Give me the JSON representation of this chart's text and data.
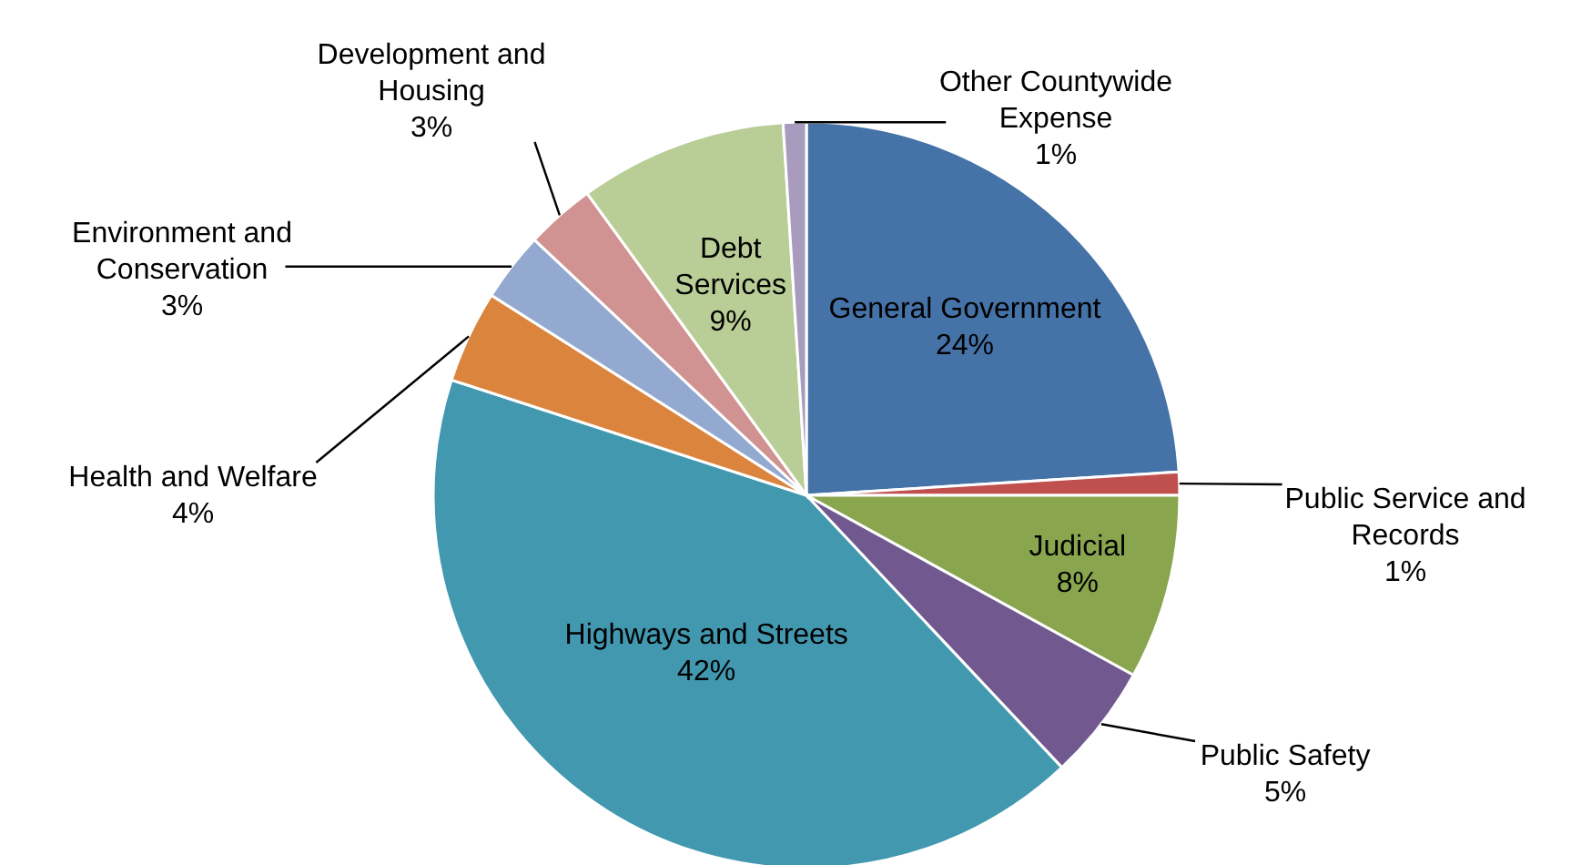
{
  "chart_data": {
    "type": "pie",
    "categories": [
      "General Government",
      "Public Service and Records",
      "Judicial",
      "Public Safety",
      "Highways and Streets",
      "Health and Welfare",
      "Environment and Conservation",
      "Development and Housing",
      "Debt Services",
      "Other Countywide Expense"
    ],
    "values": [
      24,
      1,
      8,
      5,
      42,
      4,
      3,
      3,
      9,
      1
    ],
    "value_labels": [
      "24%",
      "1%",
      "8%",
      "5%",
      "42%",
      "4%",
      "3%",
      "3%",
      "9%",
      "1%"
    ],
    "colors": [
      "#4572a7",
      "#c0504d",
      "#89a54e",
      "#71588f",
      "#4198af",
      "#db843d",
      "#93a9cf",
      "#d19392",
      "#b9cd96",
      "#a99bbd"
    ]
  }
}
